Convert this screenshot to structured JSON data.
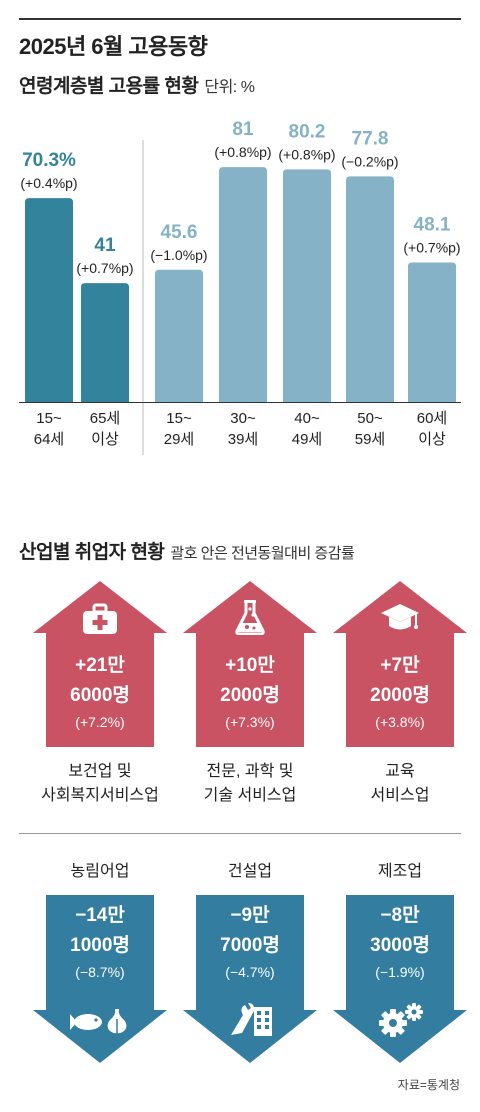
{
  "title": "2025년 6월 고용동향",
  "age_section": {
    "title": "연령계층별 고용률 현황",
    "unit": "단위: %"
  },
  "chart_data": {
    "type": "bar",
    "title": "연령계층별 고용률 현황",
    "unit": "%",
    "ylim": [
      0,
      90
    ],
    "groups": [
      {
        "bars": [
          {
            "label_lines": [
              "15~",
              "64세"
            ],
            "value": 70.3,
            "value_label": "70.3%",
            "change": "(+0.4%p)"
          },
          {
            "label_lines": [
              "65세",
              "이상"
            ],
            "value": 41,
            "value_label": "41",
            "change": "(+0.7%p)"
          }
        ]
      },
      {
        "bars": [
          {
            "label_lines": [
              "15~",
              "29세"
            ],
            "value": 45.6,
            "value_label": "45.6",
            "change": "(−1.0%p)"
          },
          {
            "label_lines": [
              "30~",
              "39세"
            ],
            "value": 81,
            "value_label": "81",
            "change": "(+0.8%p)"
          },
          {
            "label_lines": [
              "40~",
              "49세"
            ],
            "value": 80.2,
            "value_label": "80.2",
            "change": "(+0.8%p)"
          },
          {
            "label_lines": [
              "50~",
              "59세"
            ],
            "value": 77.8,
            "value_label": "77.8",
            "change": "(−0.2%p)"
          },
          {
            "label_lines": [
              "60세",
              "이상"
            ],
            "value": 48.1,
            "value_label": "48.1",
            "change": "(+0.7%p)"
          }
        ]
      }
    ]
  },
  "colors": {
    "dark_teal": "#34839d",
    "light_teal": "#86b2c7",
    "red": "#c95263",
    "blue": "#337ea0",
    "text": "#222222"
  },
  "industry_section": {
    "title": "산업별 취업자 현황",
    "note": "괄호 안은 전년동월대비 증감률",
    "increases": [
      {
        "icon": "first-aid-kit-icon",
        "line1": "+21만",
        "line2": "6000명",
        "pct": "(+7.2%)",
        "label1": "보건업 및",
        "label2": "사회복지서비스업"
      },
      {
        "icon": "flask-icon",
        "line1": "+10만",
        "line2": "2000명",
        "pct": "(+7.3%)",
        "label1": "전문, 과학 및",
        "label2": "기술 서비스업"
      },
      {
        "icon": "graduation-cap-icon",
        "line1": "+7만",
        "line2": "2000명",
        "pct": "(+3.8%)",
        "label1": "교육",
        "label2": "서비스업"
      }
    ],
    "decreases": [
      {
        "icon": "fish-garlic-icon",
        "name": "농림어업",
        "line1": "−14만",
        "line2": "1000명",
        "pct": "(−8.7%)"
      },
      {
        "icon": "wrench-building-icon",
        "name": "건설업",
        "line1": "−9만",
        "line2": "7000명",
        "pct": "(−4.7%)"
      },
      {
        "icon": "gears-icon",
        "name": "제조업",
        "line1": "−8만",
        "line2": "3000명",
        "pct": "(−1.9%)"
      }
    ]
  },
  "source": "자료=통계청"
}
